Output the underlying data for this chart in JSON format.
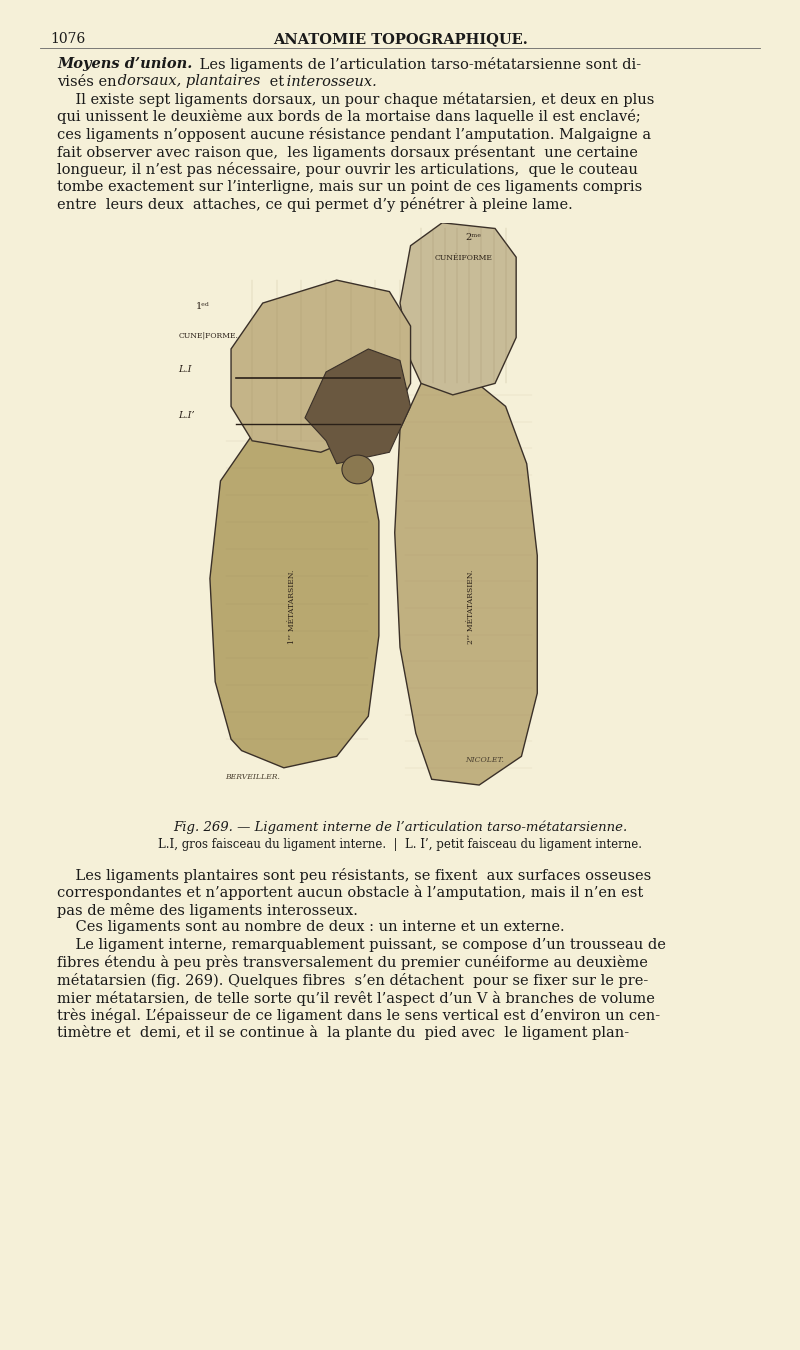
{
  "background_color": "#f5f0d8",
  "page_number": "1076",
  "header_title": "ANATOMIE TOPOGRAPHIQUE.",
  "top_text_line1": "    Moyens d’union.  Les ligaments de l’articulation tarso-métatarsienne sont di-",
  "top_text_line2": "visés en dorsaux, plantaires et interosseux.",
  "top_text_line3": "    Il existe sept ligaments dorsaux, un pour chaque métatarsien, et deux en plus",
  "top_text_line4": "qui unissent le deuxième aux bords de la mortaise dans laquelle il est enclavé;",
  "top_text_line5": "ces ligaments n’opposent aucune résistance pendant l’amputation. Malgaigne a",
  "top_text_line6": "fait observer avec raison que,  les ligaments dorsaux présentant  une certaine",
  "top_text_line7": "longueur, il n’est pas nécessaire, pour ouvrir les articulations,  que le couteau",
  "top_text_line8": "tombe exactement sur l’interligne, mais sur un point de ces ligaments compris",
  "top_text_line9": "entre  leurs deux  attaches, ce qui permet d’y pénétrer à pleine lame.",
  "fig_caption": "Fig. 269. — Ligament interne de l’articulation tarso-métatarsienne.",
  "fig_legend": "L.I, gros faisceau du ligament interne.  |  L. I’, petit faisceau du ligament interne.",
  "bottom_text_line1": "    Les ligaments plantaires sont peu résistants, se fixent  aux surfaces osseuses",
  "bottom_text_line2": "correspondantes et n’apportent aucun obstacle à l’amputation, mais il n’en est",
  "bottom_text_line3": "pas de même des ligaments interosseux.",
  "bottom_text_line4": "    Ces ligaments sont au nombre de deux : un interne et un externe.",
  "bottom_text_line5": "    Le ligament interne, remarquablement puissant, se compose d’un trousseau de",
  "bottom_text_line6": "fibres étendu à peu près transversalement du premier cunéiforme au deuxième",
  "bottom_text_line7": "métatarsien (fig. 269). Quelques fibres  s’en détachent  pour se fixer sur le pre-",
  "bottom_text_line8": "mier métatarsien, de telle sorte qu’il revêt l’aspect d’un V à branches de volume",
  "bottom_text_line9": "très inégal. L’épaisseur de ce ligament dans le sens vertical est d’environ un cen-",
  "bottom_text_line10": "timètre et  demi, et il se continue à  la plante du  pied avec  le ligament plan-",
  "bone_color1": "#c8b48a",
  "bone_color2": "#c0aa80",
  "bone_color3": "#b8a878",
  "bone_color4": "#c0b080",
  "bone_edge": "#3a3028",
  "dark_color": "#2a2018",
  "text_color": "#1a1a1a",
  "signature_color": "#4a4030"
}
